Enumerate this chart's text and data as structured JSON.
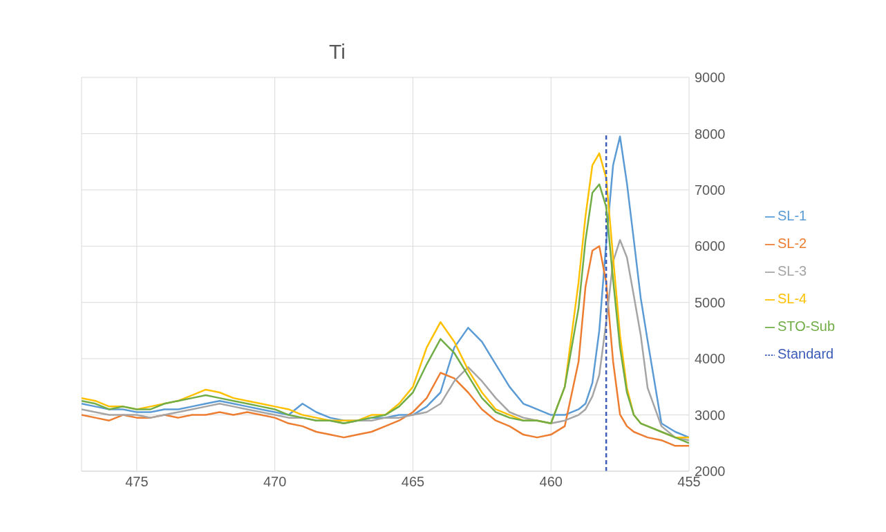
{
  "chart_data": {
    "type": "line",
    "title": "Ti",
    "x": [
      477,
      476.5,
      476,
      475.5,
      475,
      474.5,
      474,
      473.5,
      473,
      472.5,
      472,
      471.5,
      471,
      470.5,
      470,
      469.5,
      469,
      468.5,
      468,
      467.5,
      467,
      466.5,
      466,
      465.5,
      465,
      464.5,
      464,
      463.5,
      463,
      462.5,
      462,
      461.5,
      461,
      460.5,
      460,
      459.5,
      459,
      458.75,
      458.5,
      458.25,
      458,
      457.75,
      457.5,
      457.25,
      457,
      456.75,
      456.5,
      456,
      455.5,
      455
    ],
    "series": [
      {
        "name": "SL-1",
        "color": "#5b9bd5",
        "values": [
          3200,
          3150,
          3100,
          3100,
          3050,
          3050,
          3100,
          3100,
          3150,
          3200,
          3250,
          3200,
          3150,
          3100,
          3050,
          3000,
          3200,
          3050,
          2950,
          2900,
          2900,
          2950,
          2950,
          3000,
          3000,
          3150,
          3400,
          4200,
          4550,
          4300,
          3900,
          3500,
          3200,
          3100,
          3000,
          3000,
          3100,
          3200,
          3570,
          4500,
          6060,
          7440,
          7950,
          7120,
          6110,
          5080,
          4320,
          2850,
          2700,
          2600
        ]
      },
      {
        "name": "SL-2",
        "color": "#ed7d31",
        "values": [
          3000,
          2950,
          2900,
          3000,
          2950,
          2950,
          3000,
          2950,
          3000,
          3000,
          3050,
          3000,
          3050,
          3000,
          2950,
          2850,
          2800,
          2700,
          2650,
          2600,
          2650,
          2700,
          2800,
          2900,
          3050,
          3300,
          3750,
          3650,
          3400,
          3100,
          2900,
          2800,
          2650,
          2600,
          2650,
          2800,
          3950,
          5280,
          5920,
          6000,
          5360,
          3950,
          3010,
          2800,
          2700,
          2650,
          2600,
          2550,
          2450,
          2450
        ]
      },
      {
        "name": "SL-3",
        "color": "#a5a5a5",
        "values": [
          3100,
          3050,
          3000,
          3000,
          3000,
          2950,
          3000,
          3050,
          3100,
          3150,
          3200,
          3150,
          3100,
          3050,
          3000,
          2950,
          2950,
          2900,
          2900,
          2850,
          2900,
          2900,
          2950,
          2950,
          3000,
          3050,
          3200,
          3600,
          3850,
          3600,
          3300,
          3050,
          2950,
          2900,
          2850,
          2900,
          3000,
          3100,
          3330,
          3710,
          4650,
          5730,
          6110,
          5800,
          5120,
          4420,
          3480,
          2800,
          2600,
          2550
        ]
      },
      {
        "name": "SL-4",
        "color": "#ffc000",
        "values": [
          3300,
          3250,
          3150,
          3150,
          3100,
          3150,
          3200,
          3250,
          3350,
          3450,
          3400,
          3300,
          3250,
          3200,
          3150,
          3100,
          3000,
          2950,
          2900,
          2900,
          2900,
          3000,
          3000,
          3200,
          3500,
          4200,
          4650,
          4300,
          3800,
          3400,
          3100,
          3000,
          2900,
          2900,
          2850,
          3500,
          5360,
          6530,
          7440,
          7650,
          7210,
          5800,
          4420,
          3480,
          3000,
          2850,
          2800,
          2700,
          2600,
          2600
        ]
      },
      {
        "name": "Standard",
        "color": "#3b5cb8",
        "line_style": "dashed",
        "x": [
          458,
          458
        ],
        "values": [
          2000,
          8000
        ]
      },
      {
        "name": "STO-Sub",
        "color": "#70ad47",
        "values": [
          3250,
          3200,
          3100,
          3150,
          3100,
          3100,
          3200,
          3250,
          3300,
          3350,
          3300,
          3250,
          3200,
          3150,
          3100,
          3000,
          2950,
          2900,
          2900,
          2850,
          2900,
          2950,
          3000,
          3150,
          3400,
          3900,
          4350,
          4100,
          3700,
          3300,
          3050,
          2950,
          2900,
          2900,
          2850,
          3500,
          4900,
          6100,
          6950,
          7100,
          6700,
          5400,
          4200,
          3400,
          3000,
          2850,
          2800,
          2700,
          2600,
          2500
        ]
      }
    ],
    "xlim": [
      477,
      455
    ],
    "xticks": [
      475,
      470,
      465,
      460,
      455
    ],
    "ylim": [
      2000,
      9000
    ],
    "yticks": [
      2000,
      3000,
      4000,
      5000,
      6000,
      7000,
      8000,
      9000
    ],
    "grid": true,
    "legend": "right",
    "line_style": "solid",
    "marker": "none"
  }
}
